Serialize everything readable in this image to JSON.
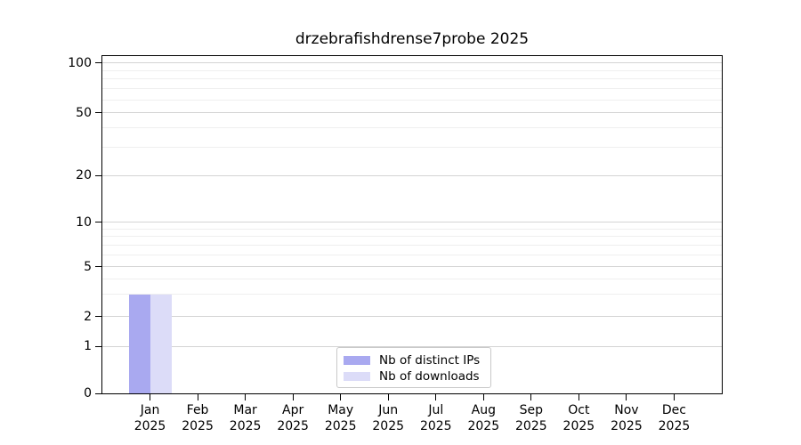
{
  "chart_data": {
    "type": "bar",
    "title": "drzebrafishdrense7probe 2025",
    "categories": [
      "Jan",
      "Feb",
      "Mar",
      "Apr",
      "May",
      "Jun",
      "Jul",
      "Aug",
      "Sep",
      "Oct",
      "Nov",
      "Dec"
    ],
    "x_year": "2025",
    "series": [
      {
        "name": "Nb of distinct IPs",
        "color": "#a9a9f0",
        "values": [
          3,
          0,
          0,
          0,
          0,
          0,
          0,
          0,
          0,
          0,
          0,
          0
        ]
      },
      {
        "name": "Nb of downloads",
        "color": "#dcdcf8",
        "values": [
          3,
          0,
          0,
          0,
          0,
          0,
          0,
          0,
          0,
          0,
          0,
          0
        ]
      }
    ],
    "xlabel": "",
    "ylabel": "",
    "y_ticks": [
      0,
      1,
      2,
      5,
      10,
      20,
      50,
      100
    ],
    "y_minor_ticks": [
      3,
      4,
      6,
      7,
      8,
      9,
      30,
      40,
      60,
      70,
      80,
      90
    ],
    "ylim": [
      0,
      112
    ],
    "yscale": "log-like",
    "scale_anchors": [
      [
        0,
        0.0
      ],
      [
        1,
        0.139
      ],
      [
        2,
        0.228
      ],
      [
        5,
        0.375
      ],
      [
        10,
        0.507
      ],
      [
        20,
        0.646
      ],
      [
        50,
        0.832
      ],
      [
        100,
        0.979
      ]
    ],
    "grid": "horizontal major and minor gridlines",
    "legend_position": "lower center",
    "colors": {
      "background": "#ffffff",
      "spine": "#000000",
      "major_grid": "#d4d4d4",
      "minor_grid": "#efefef",
      "legend_border": "#c9c9c9",
      "text": "#000000"
    }
  }
}
